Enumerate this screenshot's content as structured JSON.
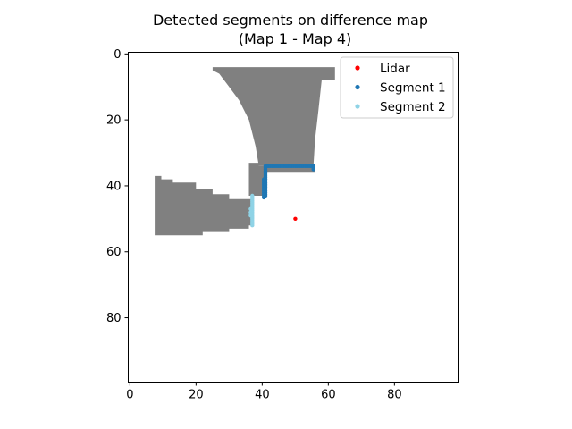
{
  "chart_data": {
    "type": "scatter",
    "title": "Detected segments on difference map",
    "subtitle": "(Map 1 - Map 4)",
    "xlabel": "",
    "ylabel": "",
    "xlim": [
      -0.5,
      99.5
    ],
    "ylim": [
      99.5,
      -0.5
    ],
    "y_inverted": true,
    "grid": false,
    "legend_position": "top-right",
    "x_ticks": [
      0,
      20,
      40,
      60,
      80
    ],
    "y_ticks": [
      0,
      20,
      40,
      60,
      80
    ],
    "x_tick_labels": [
      "0",
      "20",
      "40",
      "60",
      "80"
    ],
    "y_tick_labels": [
      "0",
      "20",
      "40",
      "60",
      "80"
    ],
    "background_map": {
      "description_color": "#808080",
      "color": "#808080",
      "light_color": "#b0b0b0",
      "regions": [
        {
          "name": "upper-trapezoid",
          "polygon": [
            [
              25,
              4
            ],
            [
              62,
              4
            ],
            [
              62,
              8
            ],
            [
              58,
              8
            ],
            [
              57,
              17
            ],
            [
              56,
              26
            ],
            [
              55.5,
              34
            ],
            [
              39,
              34
            ],
            [
              38,
              28
            ],
            [
              36,
              20
            ],
            [
              33,
              14
            ],
            [
              30,
              10
            ],
            [
              27,
              6
            ],
            [
              25,
              5
            ]
          ]
        },
        {
          "name": "connector-block",
          "polygon": [
            [
              36,
              33
            ],
            [
              39,
              33
            ],
            [
              39,
              34
            ],
            [
              56,
              34
            ],
            [
              56,
              36
            ],
            [
              40.5,
              36
            ],
            [
              40.5,
              43
            ],
            [
              37,
              43
            ],
            [
              36,
              43
            ],
            [
              36,
              38
            ]
          ]
        },
        {
          "name": "left-block",
          "polygon": [
            [
              7.5,
              37
            ],
            [
              9.5,
              37
            ],
            [
              9.5,
              38
            ],
            [
              13,
              38
            ],
            [
              13,
              39
            ],
            [
              20,
              39
            ],
            [
              20,
              41
            ],
            [
              25,
              41
            ],
            [
              25,
              42.5
            ],
            [
              30,
              42.5
            ],
            [
              30,
              44
            ],
            [
              37,
              44
            ],
            [
              37,
              52
            ],
            [
              36,
              52
            ],
            [
              36,
              53
            ],
            [
              30,
              53
            ],
            [
              30,
              54
            ],
            [
              22,
              54
            ],
            [
              22,
              55
            ],
            [
              7.5,
              55
            ]
          ]
        }
      ]
    },
    "series": [
      {
        "name": "Lidar",
        "color": "#ff0000",
        "x": [
          50
        ],
        "y": [
          50
        ]
      },
      {
        "name": "Segment 1",
        "color": "#1f77b4",
        "x": [
          41,
          41.5,
          42,
          42.5,
          43,
          43.5,
          44,
          44.5,
          45,
          45.5,
          46,
          46.5,
          47,
          47.5,
          48,
          48.5,
          49,
          49.5,
          50,
          50.5,
          51,
          51.5,
          52,
          52.5,
          53,
          53.5,
          54,
          54.5,
          55,
          55.5,
          41,
          41,
          41,
          41,
          41,
          41,
          41,
          41,
          41,
          41,
          41,
          41,
          41,
          41,
          41,
          41,
          41,
          41,
          40.5,
          40.5,
          40.5,
          40.5,
          40.5,
          40.5,
          40.5,
          40.5,
          40.5,
          40.5,
          40.5,
          40.5,
          55.5,
          55.5
        ],
        "y": [
          34,
          34,
          34,
          34,
          34,
          34,
          34,
          34,
          34,
          34,
          34,
          34,
          34,
          34,
          34,
          34,
          34,
          34,
          34,
          34,
          34,
          34,
          34,
          34,
          34,
          34,
          34,
          34,
          34,
          34,
          34.5,
          35,
          35.5,
          36,
          36.5,
          37,
          37.5,
          38,
          38.5,
          39,
          39.5,
          40,
          40.5,
          41,
          41.5,
          42,
          42.5,
          43,
          38,
          38.5,
          39,
          39.5,
          40,
          40.5,
          41,
          41.5,
          42,
          42.5,
          43,
          43.5,
          34.5,
          35
        ]
      },
      {
        "name": "Segment 2",
        "color": "#8fd3e6",
        "x": [
          37,
          37,
          37,
          37,
          37,
          37,
          37,
          37,
          37,
          37,
          37,
          37,
          37,
          37,
          37,
          37,
          37,
          37,
          37,
          36.5,
          36.5,
          36.5
        ],
        "y": [
          43,
          43.5,
          44,
          44.5,
          45,
          45.5,
          46,
          46.5,
          47,
          47.5,
          48,
          48.5,
          49,
          49.5,
          50,
          50.5,
          51,
          51.5,
          52,
          47,
          48,
          49
        ]
      }
    ]
  }
}
